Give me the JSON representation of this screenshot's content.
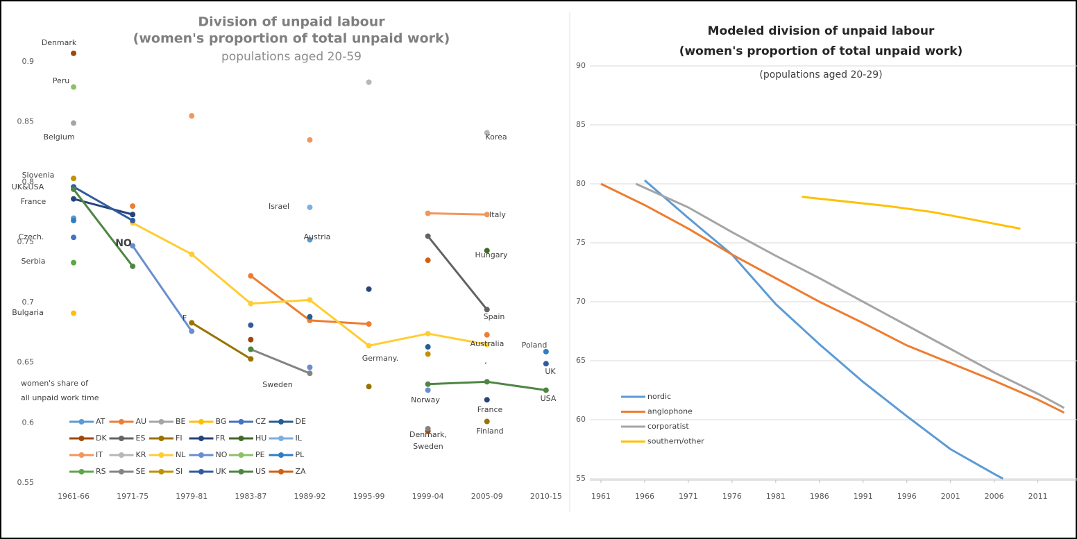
{
  "chart_data": [
    {
      "type": "line",
      "markers": true,
      "grid": false,
      "legend": "bottom",
      "title": [
        "Division of unpaid labour",
        "(women's proportion of total unpaid work)"
      ],
      "subtitle": "populations aged 20-59",
      "y_label": [
        "women's share of",
        "all unpaid work time"
      ],
      "categories": [
        "1961-66",
        "1971-75",
        "1979-81",
        "1983-87",
        "1989-92",
        "1995-99",
        "1999-04",
        "2005-09",
        "2010-15"
      ],
      "ylim": [
        0.55,
        0.92
      ],
      "yticks": [
        0.55,
        0.6,
        0.65,
        0.7,
        0.75,
        0.8,
        0.85,
        0.9
      ],
      "annotations": [
        "Denmark",
        "Peru",
        "Belgium",
        "Slovenia",
        "UK&USA",
        "France",
        "Czech.",
        "Serbia",
        "Bulgaria",
        "NO",
        "F",
        "Israel",
        "Austria",
        "Korea",
        "Italy",
        "Hungary",
        "Spain",
        "Australia",
        "Poland",
        "Germany.",
        ",",
        "UK",
        "Sweden",
        "Norway",
        "France",
        "USA",
        "Finland",
        "Denmark,",
        "Sweden"
      ],
      "series": [
        {
          "name": "AT",
          "color": "#5b9bd5",
          "values": [
            0.77,
            null,
            null,
            null,
            0.752,
            null,
            null,
            null,
            null
          ]
        },
        {
          "name": "AU",
          "color": "#ed7d31",
          "values": [
            null,
            0.78,
            null,
            0.722,
            0.685,
            0.682,
            null,
            0.673,
            null
          ]
        },
        {
          "name": "BE",
          "color": "#a5a5a5",
          "values": [
            0.849,
            null,
            null,
            null,
            null,
            null,
            null,
            null,
            null
          ]
        },
        {
          "name": "BG",
          "color": "#ffc000",
          "values": [
            0.691,
            null,
            null,
            null,
            null,
            null,
            null,
            null,
            null
          ]
        },
        {
          "name": "CZ",
          "color": "#4472c4",
          "values": [
            0.754,
            null,
            null,
            null,
            null,
            null,
            null,
            null,
            null
          ]
        },
        {
          "name": "DE",
          "color": "#255e91",
          "values": [
            null,
            null,
            null,
            null,
            0.688,
            null,
            0.663,
            null,
            null
          ]
        },
        {
          "name": "DK",
          "color": "#9e480e",
          "values": [
            0.907,
            null,
            null,
            0.669,
            null,
            null,
            0.593,
            null,
            null
          ]
        },
        {
          "name": "ES",
          "color": "#636363",
          "values": [
            null,
            null,
            null,
            null,
            null,
            null,
            0.755,
            0.694,
            null
          ]
        },
        {
          "name": "FI",
          "color": "#997300",
          "values": [
            null,
            null,
            0.683,
            0.653,
            null,
            0.63,
            null,
            0.601,
            null
          ]
        },
        {
          "name": "FR",
          "color": "#264478",
          "values": [
            0.786,
            0.773,
            null,
            null,
            null,
            0.711,
            null,
            0.619,
            null
          ]
        },
        {
          "name": "HU",
          "color": "#43682b",
          "values": [
            null,
            null,
            null,
            null,
            null,
            null,
            null,
            0.743,
            null
          ]
        },
        {
          "name": "IL",
          "color": "#7cafdd",
          "values": [
            null,
            null,
            null,
            null,
            0.779,
            null,
            null,
            null,
            null
          ]
        },
        {
          "name": "IT",
          "color": "#f1975a",
          "values": [
            null,
            null,
            0.855,
            null,
            0.835,
            null,
            0.774,
            0.773,
            null
          ]
        },
        {
          "name": "KR",
          "color": "#b7b7b7",
          "values": [
            null,
            null,
            null,
            null,
            null,
            0.883,
            null,
            0.841,
            null
          ]
        },
        {
          "name": "NL",
          "color": "#ffcd33",
          "values": [
            null,
            0.766,
            0.74,
            0.699,
            0.702,
            0.664,
            0.674,
            0.665,
            null
          ]
        },
        {
          "name": "NO",
          "color": "#698ed0",
          "values": [
            null,
            0.747,
            0.676,
            null,
            0.646,
            null,
            0.627,
            null,
            null
          ]
        },
        {
          "name": "PE",
          "color": "#8cc168",
          "values": [
            0.879,
            null,
            null,
            null,
            null,
            null,
            null,
            null,
            null
          ]
        },
        {
          "name": "PL",
          "color": "#327dc2",
          "values": [
            0.768,
            null,
            null,
            null,
            null,
            null,
            null,
            null,
            0.659
          ]
        },
        {
          "name": "RS",
          "color": "#5ba747",
          "values": [
            0.733,
            null,
            null,
            null,
            null,
            null,
            null,
            null,
            null
          ]
        },
        {
          "name": "SE",
          "color": "#848484",
          "values": [
            null,
            null,
            null,
            0.661,
            0.641,
            null,
            0.595,
            null,
            null
          ]
        },
        {
          "name": "SI",
          "color": "#c09100",
          "values": [
            0.803,
            null,
            null,
            null,
            null,
            null,
            0.657,
            null,
            null
          ]
        },
        {
          "name": "UK",
          "color": "#335aa1",
          "values": [
            0.796,
            0.768,
            null,
            0.681,
            null,
            null,
            null,
            null,
            0.649
          ]
        },
        {
          "name": "US",
          "color": "#4e8542",
          "values": [
            0.794,
            0.73,
            null,
            0.661,
            null,
            null,
            0.632,
            0.634,
            0.627
          ]
        },
        {
          "name": "ZA",
          "color": "#d26012",
          "values": [
            null,
            null,
            null,
            null,
            null,
            null,
            0.735,
            null,
            null
          ]
        }
      ]
    },
    {
      "type": "line",
      "markers": false,
      "grid": true,
      "legend": "lower left",
      "title": [
        "Modeled division of unpaid labour",
        "(women's proportion of total unpaid work)"
      ],
      "subtitle": "(populations aged 20-29)",
      "xlim": [
        1960,
        2015
      ],
      "xticks": [
        1961,
        1966,
        1971,
        1976,
        1981,
        1986,
        1991,
        1996,
        2001,
        2006,
        2011
      ],
      "ylim": [
        55,
        90
      ],
      "yticks": [
        55,
        60,
        65,
        70,
        75,
        80,
        85,
        90
      ],
      "series": [
        {
          "name": "nordic",
          "color": "#5b9bd5",
          "x": [
            1966,
            1971,
            1976,
            1981,
            1986,
            1991,
            1996,
            2001,
            2006,
            2007
          ],
          "values": [
            80.3,
            77.1,
            74.0,
            69.8,
            66.4,
            63.2,
            60.3,
            57.5,
            55.4,
            55.0
          ]
        },
        {
          "name": "anglophone",
          "color": "#ed7d31",
          "x": [
            1961,
            1966,
            1971,
            1976,
            1981,
            1986,
            1991,
            1996,
            2001,
            2006,
            2011,
            2014
          ],
          "values": [
            80.0,
            78.2,
            76.2,
            74.0,
            72.0,
            70.0,
            68.2,
            66.3,
            64.8,
            63.3,
            61.7,
            60.6
          ]
        },
        {
          "name": "corporatist",
          "color": "#a5a5a5",
          "x": [
            1965,
            1971,
            1976,
            1981,
            1986,
            1991,
            1996,
            2001,
            2006,
            2011,
            2014
          ],
          "values": [
            80.0,
            78.0,
            75.9,
            73.9,
            72.0,
            70.0,
            68.0,
            66.0,
            64.0,
            62.2,
            61.0
          ]
        },
        {
          "name": "southern/other",
          "color": "#ffc000",
          "x": [
            1984,
            1989,
            1994,
            1999,
            2004,
            2009
          ],
          "values": [
            78.9,
            78.5,
            78.1,
            77.6,
            76.9,
            76.2
          ]
        }
      ]
    }
  ]
}
